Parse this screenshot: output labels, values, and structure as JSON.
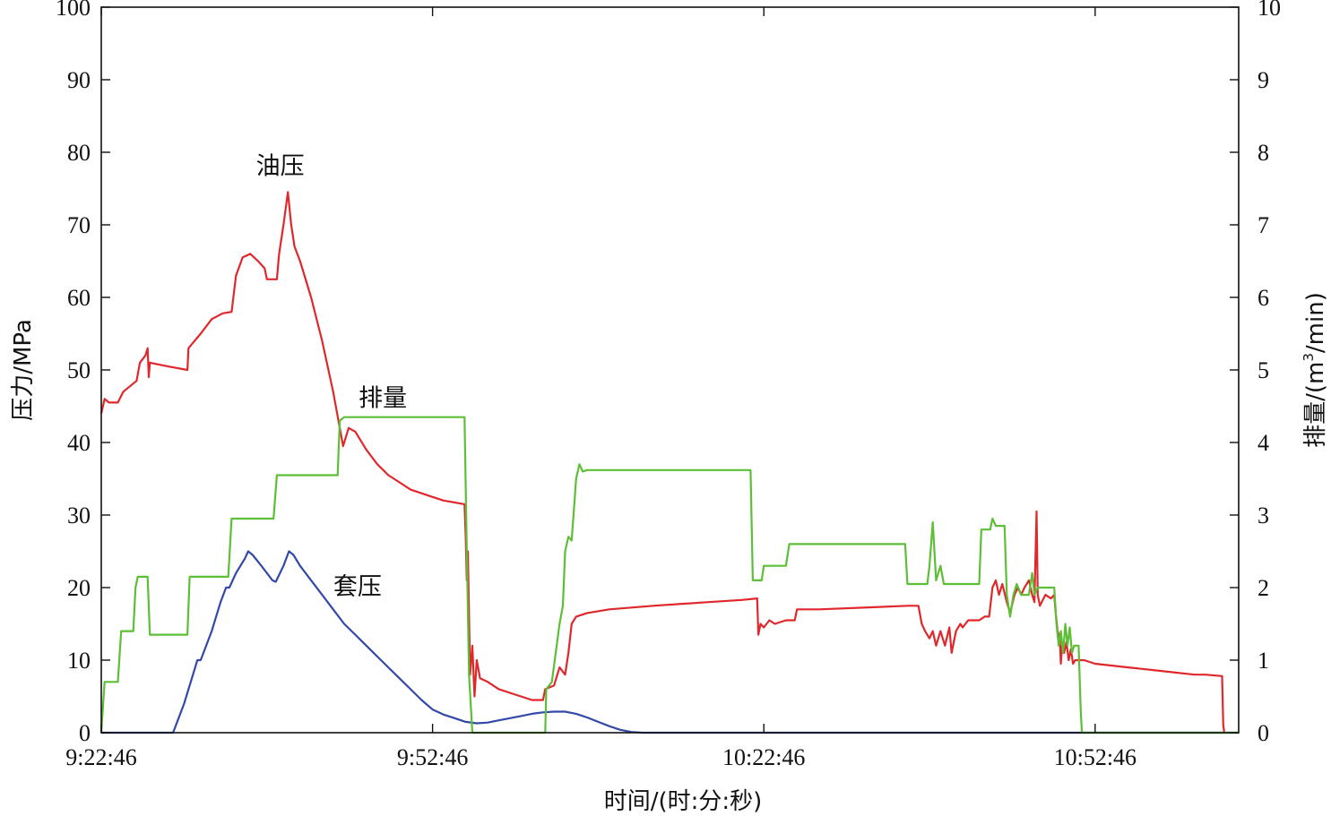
{
  "chart_data": {
    "type": "line",
    "xlabel": "时间/(时:分:秒)",
    "ylabel_left": "压力/MPa",
    "ylabel_right_prefix": "排量/(m",
    "ylabel_right_sup": "3",
    "ylabel_right_suffix": "/min)",
    "x_unit": "minutes after 9:22:46",
    "xlim": [
      0,
      103
    ],
    "x_ticks": [
      {
        "value": 0,
        "label": "9:22:46"
      },
      {
        "value": 30,
        "label": "9:52:46"
      },
      {
        "value": 60,
        "label": "10:22:46"
      },
      {
        "value": 90,
        "label": "10:52:46"
      }
    ],
    "ylim_left": [
      0,
      100
    ],
    "y_ticks_left": [
      "0",
      "10",
      "20",
      "30",
      "40",
      "50",
      "60",
      "70",
      "80",
      "90",
      "100"
    ],
    "ylim_right": [
      0,
      10
    ],
    "y_ticks_right": [
      "0",
      "1",
      "2",
      "3",
      "4",
      "5",
      "6",
      "7",
      "8",
      "9",
      "10"
    ],
    "grid": false,
    "annotations": [
      {
        "text": "油压",
        "x": 16.2,
        "y": 77
      },
      {
        "text": "排量",
        "x": 25.5,
        "y": 45
      },
      {
        "text": "套压",
        "x": 23.2,
        "y": 19
      }
    ],
    "series": [
      {
        "name": "油压",
        "axis": "left",
        "color": "#e0282c",
        "points": [
          [
            0,
            44
          ],
          [
            0.3,
            46
          ],
          [
            0.7,
            45.5
          ],
          [
            1.5,
            45.5
          ],
          [
            2,
            47
          ],
          [
            2.8,
            48
          ],
          [
            3.2,
            48.5
          ],
          [
            3.5,
            51
          ],
          [
            4,
            52
          ],
          [
            4.2,
            53
          ],
          [
            4.3,
            49
          ],
          [
            4.4,
            51
          ],
          [
            6,
            50.5
          ],
          [
            7.8,
            50
          ],
          [
            7.9,
            53
          ],
          [
            9,
            55
          ],
          [
            10,
            57
          ],
          [
            11,
            57.8
          ],
          [
            11.8,
            58
          ],
          [
            12.2,
            63
          ],
          [
            12.8,
            65.5
          ],
          [
            13.5,
            66
          ],
          [
            14.2,
            65
          ],
          [
            14.8,
            64
          ],
          [
            15,
            62.5
          ],
          [
            15.9,
            62.5
          ],
          [
            16.1,
            66
          ],
          [
            16.5,
            70
          ],
          [
            16.9,
            74.5
          ],
          [
            17.2,
            70
          ],
          [
            17.5,
            67
          ],
          [
            18,
            65
          ],
          [
            19,
            60
          ],
          [
            20,
            54
          ],
          [
            21,
            47
          ],
          [
            21.6,
            42
          ],
          [
            21.9,
            39.5
          ],
          [
            22.4,
            42
          ],
          [
            23,
            41.5
          ],
          [
            24,
            39
          ],
          [
            25,
            37
          ],
          [
            26,
            35.5
          ],
          [
            27,
            34.5
          ],
          [
            28,
            33.5
          ],
          [
            29,
            33
          ],
          [
            30,
            32.5
          ],
          [
            31,
            32
          ],
          [
            32.9,
            31.5
          ],
          [
            33,
            27
          ],
          [
            33.1,
            21
          ],
          [
            33.2,
            25
          ],
          [
            33.4,
            8
          ],
          [
            33.6,
            12
          ],
          [
            33.8,
            5
          ],
          [
            34,
            10
          ],
          [
            34.3,
            7.5
          ],
          [
            35,
            7
          ],
          [
            36,
            6
          ],
          [
            37,
            5.5
          ],
          [
            38,
            5
          ],
          [
            39,
            4.5
          ],
          [
            40,
            4.5
          ],
          [
            40.2,
            6
          ],
          [
            41,
            6.5
          ],
          [
            41.5,
            9
          ],
          [
            42,
            8
          ],
          [
            42.3,
            11
          ],
          [
            42.6,
            15
          ],
          [
            43,
            16
          ],
          [
            44,
            16.5
          ],
          [
            46,
            17
          ],
          [
            50,
            17.5
          ],
          [
            55,
            18
          ],
          [
            58,
            18.3
          ],
          [
            59.4,
            18.5
          ],
          [
            59.5,
            13.5
          ],
          [
            59.7,
            15
          ],
          [
            60,
            14.5
          ],
          [
            60.5,
            15.5
          ],
          [
            61,
            15
          ],
          [
            62,
            15.5
          ],
          [
            62.8,
            15.5
          ],
          [
            63,
            17
          ],
          [
            65,
            17
          ],
          [
            70,
            17.3
          ],
          [
            73,
            17.5
          ],
          [
            74,
            17.5
          ],
          [
            74.3,
            15
          ],
          [
            74.6,
            14
          ],
          [
            75,
            13
          ],
          [
            75.3,
            14
          ],
          [
            75.6,
            12
          ],
          [
            76,
            14
          ],
          [
            76.4,
            12
          ],
          [
            76.8,
            14.5
          ],
          [
            77,
            11
          ],
          [
            77.4,
            14
          ],
          [
            77.8,
            15
          ],
          [
            78,
            14.5
          ],
          [
            78.5,
            15.5
          ],
          [
            79.5,
            15.5
          ],
          [
            80,
            16
          ],
          [
            80.4,
            16
          ],
          [
            80.7,
            20
          ],
          [
            81,
            21
          ],
          [
            81.3,
            19
          ],
          [
            81.6,
            20.5
          ],
          [
            82,
            18
          ],
          [
            82.3,
            16.5
          ],
          [
            82.7,
            19
          ],
          [
            83,
            20
          ],
          [
            83.3,
            19
          ],
          [
            83.6,
            20
          ],
          [
            84,
            21
          ],
          [
            84.3,
            19
          ],
          [
            84.5,
            18
          ],
          [
            84.7,
            30.5
          ],
          [
            84.8,
            19
          ],
          [
            85,
            17.5
          ],
          [
            85.5,
            19
          ],
          [
            86,
            18.5
          ],
          [
            86.3,
            19
          ],
          [
            86.4,
            17
          ],
          [
            86.6,
            14
          ],
          [
            86.8,
            13
          ],
          [
            86.9,
            9.5
          ],
          [
            87,
            12
          ],
          [
            87.2,
            11
          ],
          [
            87.4,
            12.5
          ],
          [
            87.6,
            10
          ],
          [
            87.8,
            11.5
          ],
          [
            88,
            9.5
          ],
          [
            88.2,
            10
          ],
          [
            88.5,
            10
          ],
          [
            89,
            10
          ],
          [
            90,
            9.5
          ],
          [
            93,
            9
          ],
          [
            96,
            8.5
          ],
          [
            99,
            8
          ],
          [
            100,
            8
          ],
          [
            101.5,
            7.8
          ],
          [
            101.6,
            1
          ],
          [
            101.7,
            0
          ]
        ]
      },
      {
        "name": "套压",
        "axis": "left",
        "color": "#3349a8",
        "points": [
          [
            0,
            0
          ],
          [
            6.5,
            0
          ],
          [
            7.5,
            4
          ],
          [
            8.3,
            8
          ],
          [
            8.7,
            10
          ],
          [
            9,
            10
          ],
          [
            10,
            14
          ],
          [
            10.8,
            18
          ],
          [
            11.3,
            20
          ],
          [
            11.6,
            20
          ],
          [
            12.2,
            22
          ],
          [
            13,
            24
          ],
          [
            13.3,
            25
          ],
          [
            13.7,
            24.5
          ],
          [
            14.5,
            23
          ],
          [
            15.5,
            21
          ],
          [
            15.8,
            20.8
          ],
          [
            16.5,
            23
          ],
          [
            17,
            25
          ],
          [
            17.4,
            24.5
          ],
          [
            18,
            23
          ],
          [
            19,
            21
          ],
          [
            20,
            19
          ],
          [
            21,
            17
          ],
          [
            22,
            15
          ],
          [
            23,
            13.5
          ],
          [
            24,
            12
          ],
          [
            25,
            10.5
          ],
          [
            26,
            9
          ],
          [
            27,
            7.5
          ],
          [
            28,
            6
          ],
          [
            29,
            4.5
          ],
          [
            30,
            3.2
          ],
          [
            31,
            2.5
          ],
          [
            32,
            2
          ],
          [
            33,
            1.5
          ],
          [
            34,
            1.3
          ],
          [
            35,
            1.4
          ],
          [
            36,
            1.7
          ],
          [
            37,
            2
          ],
          [
            38,
            2.3
          ],
          [
            39,
            2.6
          ],
          [
            40,
            2.8
          ],
          [
            41,
            2.9
          ],
          [
            42,
            2.9
          ],
          [
            43,
            2.6
          ],
          [
            44,
            2.1
          ],
          [
            45,
            1.5
          ],
          [
            46,
            0.9
          ],
          [
            47,
            0.4
          ],
          [
            48,
            0.1
          ],
          [
            49,
            0
          ],
          [
            103,
            0
          ]
        ]
      },
      {
        "name": "排量",
        "axis": "right",
        "color": "#5cbf35",
        "points": [
          [
            0,
            0
          ],
          [
            0.3,
            0.7
          ],
          [
            1.5,
            0.7
          ],
          [
            1.8,
            1.4
          ],
          [
            2.9,
            1.4
          ],
          [
            3.1,
            2
          ],
          [
            3.3,
            2.15
          ],
          [
            4.2,
            2.15
          ],
          [
            4.4,
            1.35
          ],
          [
            7.8,
            1.35
          ],
          [
            8,
            2.15
          ],
          [
            11.5,
            2.15
          ],
          [
            11.8,
            2.95
          ],
          [
            15.6,
            2.95
          ],
          [
            15.9,
            3.55
          ],
          [
            21.4,
            3.55
          ],
          [
            21.6,
            4.3
          ],
          [
            22,
            4.35
          ],
          [
            32.9,
            4.35
          ],
          [
            33.1,
            2.5
          ],
          [
            33.3,
            0.8
          ],
          [
            33.6,
            0
          ],
          [
            40.2,
            0
          ],
          [
            40.3,
            0.6
          ],
          [
            40.8,
            0.7
          ],
          [
            41.5,
            1.5
          ],
          [
            41.8,
            1.75
          ],
          [
            42,
            2.5
          ],
          [
            42.3,
            2.7
          ],
          [
            42.6,
            2.65
          ],
          [
            43,
            3.5
          ],
          [
            43.3,
            3.7
          ],
          [
            43.6,
            3.6
          ],
          [
            44,
            3.62
          ],
          [
            58,
            3.62
          ],
          [
            58.8,
            3.62
          ],
          [
            59,
            2.1
          ],
          [
            59.8,
            2.1
          ],
          [
            60,
            2.3
          ],
          [
            62,
            2.3
          ],
          [
            62.3,
            2.6
          ],
          [
            71.5,
            2.6
          ],
          [
            72.8,
            2.6
          ],
          [
            73,
            2.05
          ],
          [
            74.8,
            2.05
          ],
          [
            75,
            2.3
          ],
          [
            75.3,
            2.9
          ],
          [
            75.6,
            2.1
          ],
          [
            76,
            2.3
          ],
          [
            76.3,
            2.05
          ],
          [
            79.5,
            2.05
          ],
          [
            79.7,
            2.8
          ],
          [
            80.5,
            2.8
          ],
          [
            80.7,
            2.95
          ],
          [
            81,
            2.85
          ],
          [
            81.8,
            2.85
          ],
          [
            82,
            1.9
          ],
          [
            82.3,
            1.6
          ],
          [
            82.6,
            1.9
          ],
          [
            82.9,
            2.05
          ],
          [
            83.3,
            1.9
          ],
          [
            84,
            1.9
          ],
          [
            84.3,
            2.2
          ],
          [
            84.5,
            1.9
          ],
          [
            84.8,
            2
          ],
          [
            85.5,
            2
          ],
          [
            86.3,
            2
          ],
          [
            86.5,
            1.5
          ],
          [
            86.7,
            1.2
          ],
          [
            86.9,
            1.4
          ],
          [
            87.1,
            1.1
          ],
          [
            87.3,
            1.5
          ],
          [
            87.5,
            1.2
          ],
          [
            87.7,
            1.45
          ],
          [
            87.9,
            1.1
          ],
          [
            88.1,
            1.2
          ],
          [
            88.5,
            1.2
          ],
          [
            88.7,
            0.3
          ],
          [
            88.8,
            0
          ],
          [
            103,
            0
          ]
        ]
      }
    ]
  }
}
